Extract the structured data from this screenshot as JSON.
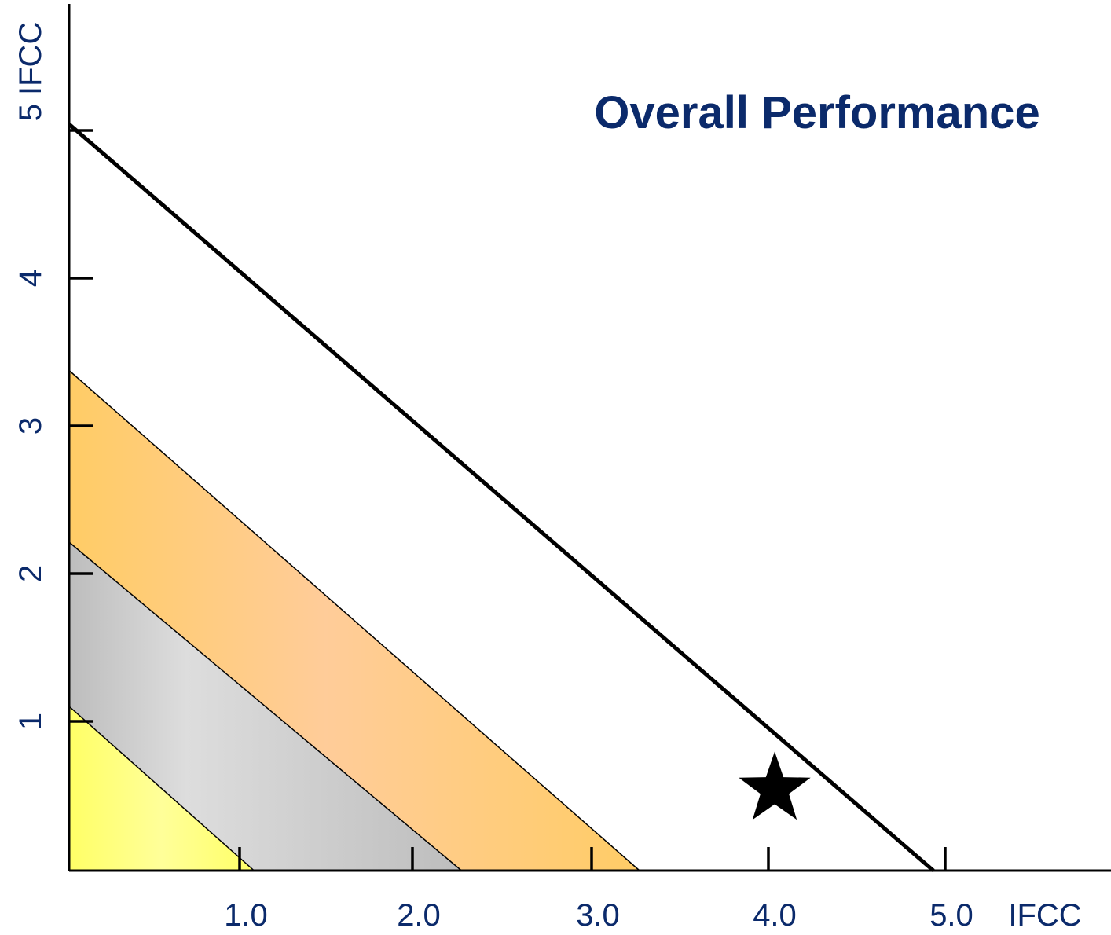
{
  "chart_data": {
    "type": "area",
    "title": "Overall Performance",
    "xlabel": "IFCC",
    "ylabel": "IFCC",
    "x_ticks": [
      "1.0",
      "2.0",
      "3.0",
      "4.0",
      "5.0"
    ],
    "y_ticks": [
      "1",
      "2",
      "3",
      "4",
      "5"
    ],
    "xlim": [
      0,
      6
    ],
    "ylim": [
      0,
      5
    ],
    "bands": [
      {
        "x_intercept": 1.07,
        "y_intercept": 1.1,
        "color": "#ffff66"
      },
      {
        "x_intercept": 2.27,
        "y_intercept": 2.2,
        "color": "#c0c0c0"
      },
      {
        "x_intercept": 3.3,
        "y_intercept": 3.35,
        "color": "#ffcc66"
      }
    ],
    "limit_line": {
      "x_intercept": 5.0,
      "y_intercept": 5.0
    },
    "points": [
      {
        "x": 4.05,
        "y": 0.55,
        "marker": "star"
      }
    ],
    "grid": false,
    "legend": false
  },
  "colors": {
    "text": "#0b2a6b",
    "axis": "#000000"
  }
}
